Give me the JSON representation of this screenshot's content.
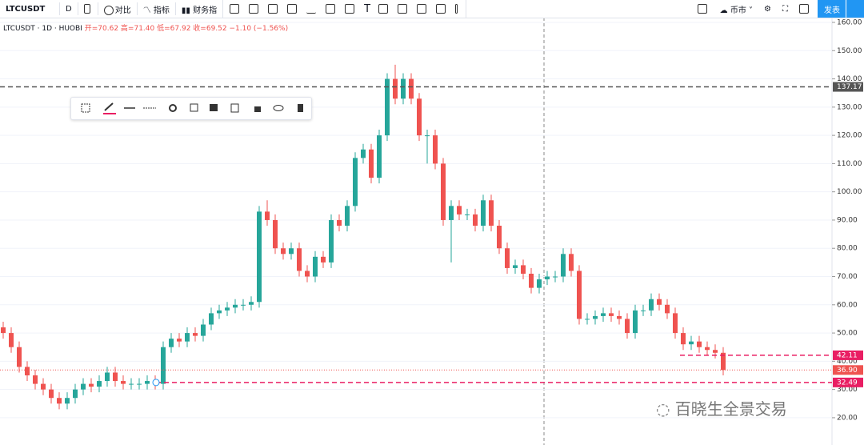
{
  "toolbar": {
    "symbol": "LTCUSDT",
    "interval": "D",
    "compare": "对比",
    "indicators": "指标",
    "financials": "财务指",
    "market": "币市",
    "publish": "发表"
  },
  "info": {
    "title": "LTCUSDT · 1D · HUOBI",
    "open": "开=70.62",
    "high": "高=71.40",
    "low": "低=67.92",
    "close": "收=69.52",
    "change": "−1.10 (−1.56%)"
  },
  "watermark": "百晓生全景交易",
  "chart_data": {
    "type": "candlestick",
    "up_color": "#26a69a",
    "down_color": "#ef5350",
    "ylim": [
      10.34,
      161.7
    ],
    "yticks": [
      {
        "value": 20,
        "label": "20.00"
      },
      {
        "value": 30,
        "label": "30.00"
      },
      {
        "value": 40,
        "label": "40.00"
      },
      {
        "value": 50,
        "label": "50.00"
      },
      {
        "value": 60,
        "label": "60.00"
      },
      {
        "value": 70,
        "label": "70.00"
      },
      {
        "value": 80,
        "label": "80.00"
      },
      {
        "value": 90,
        "label": "90.00"
      },
      {
        "value": 100,
        "label": "100.00"
      },
      {
        "value": 110,
        "label": "110.00"
      },
      {
        "value": 120,
        "label": "120.00"
      },
      {
        "value": 130,
        "label": "130.00"
      },
      {
        "value": 140,
        "label": "140.00"
      },
      {
        "value": 150,
        "label": "150.00"
      },
      {
        "value": 160,
        "label": "160.00"
      }
    ],
    "grid": true,
    "series": [
      {
        "name": "LTCUSDT",
        "open": [
          52,
          50,
          45,
          38,
          35,
          32,
          30,
          27,
          25,
          27,
          30,
          32,
          31,
          33,
          36,
          33,
          32,
          32,
          32,
          33,
          32,
          45,
          48,
          47,
          50,
          49,
          53,
          57,
          58,
          59,
          60,
          60,
          61,
          93,
          90,
          80,
          78,
          80,
          72,
          70,
          77,
          75,
          90,
          88,
          95,
          112,
          115,
          105,
          120,
          140,
          133,
          140,
          133,
          120,
          120,
          110,
          90,
          95,
          92,
          92,
          88,
          97,
          88,
          80,
          73,
          74,
          71,
          66,
          69,
          70,
          70,
          78,
          72,
          55,
          55,
          56,
          57,
          56,
          55,
          50,
          58,
          58,
          62,
          60,
          57,
          50,
          46,
          47,
          45,
          44,
          43
        ],
        "high": [
          54,
          52,
          47,
          40,
          37,
          34,
          32,
          29,
          29,
          32,
          34,
          34,
          35,
          38,
          38,
          35,
          34,
          34,
          35,
          35,
          47,
          50,
          50,
          52,
          52,
          55,
          59,
          60,
          61,
          62,
          62,
          63,
          95,
          97,
          92,
          82,
          82,
          82,
          74,
          79,
          79,
          92,
          92,
          97,
          114,
          117,
          117,
          122,
          142,
          145,
          142,
          142,
          135,
          122,
          122,
          112,
          97,
          97,
          94,
          94,
          99,
          99,
          90,
          82,
          76,
          76,
          73,
          71,
          72,
          72,
          80,
          80,
          74,
          57,
          58,
          59,
          59,
          58,
          57,
          60,
          60,
          64,
          64,
          62,
          59,
          52,
          49,
          49,
          47,
          46,
          45
        ],
        "low": [
          48,
          43,
          36,
          33,
          30,
          28,
          25,
          23,
          23,
          25,
          28,
          29,
          29,
          31,
          31,
          30,
          30,
          30,
          30,
          30,
          30,
          43,
          45,
          45,
          47,
          47,
          51,
          55,
          56,
          57,
          58,
          58,
          59,
          88,
          78,
          76,
          76,
          70,
          68,
          68,
          73,
          73,
          86,
          86,
          93,
          110,
          103,
          103,
          118,
          131,
          131,
          131,
          118,
          110,
          108,
          88,
          75,
          90,
          90,
          86,
          86,
          86,
          78,
          71,
          71,
          69,
          64,
          64,
          67,
          68,
          68,
          70,
          53,
          53,
          53,
          54,
          54,
          53,
          48,
          48,
          56,
          56,
          58,
          55,
          48,
          44,
          44,
          43,
          42,
          41,
          35
        ],
        "close": [
          50,
          45,
          38,
          35,
          32,
          30,
          27,
          25,
          27,
          30,
          32,
          31,
          33,
          36,
          33,
          32,
          32,
          32,
          33,
          32,
          45,
          48,
          47,
          50,
          49,
          53,
          57,
          58,
          59,
          60,
          60,
          61,
          93,
          90,
          80,
          78,
          80,
          72,
          70,
          77,
          75,
          90,
          88,
          95,
          112,
          115,
          105,
          120,
          140,
          133,
          140,
          133,
          120,
          120,
          110,
          90,
          95,
          92,
          92,
          88,
          97,
          88,
          80,
          73,
          74,
          71,
          66,
          69,
          70,
          70,
          78,
          72,
          55,
          55,
          56,
          57,
          56,
          55,
          50,
          58,
          58,
          62,
          60,
          57,
          50,
          46,
          47,
          45,
          44,
          43,
          36.9
        ]
      }
    ],
    "price_lines": [
      {
        "value": 137.17,
        "label": "137.17",
        "color": "#555555",
        "style": "dashed"
      },
      {
        "value": 42.11,
        "label": "42.11",
        "color": "#e91e63",
        "style": "dashed"
      },
      {
        "value": 36.9,
        "label": "36.90",
        "color": "#ef5350",
        "style": "dotted"
      },
      {
        "value": 32.49,
        "label": "32.49",
        "color": "#e91e63",
        "style": "dashed"
      }
    ]
  }
}
